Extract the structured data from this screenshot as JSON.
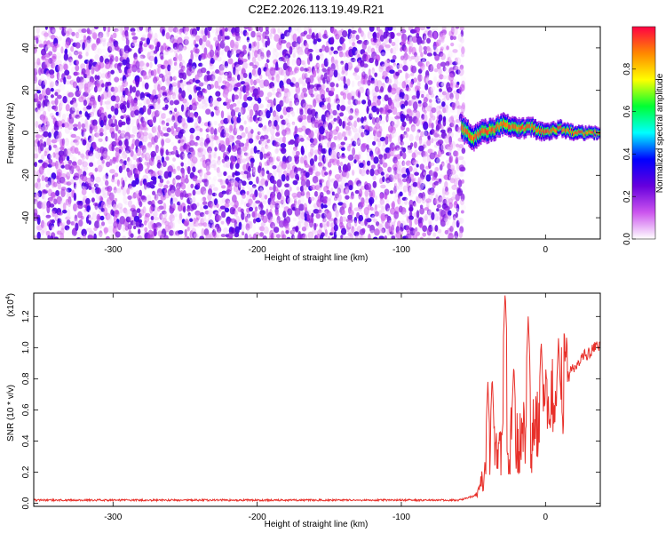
{
  "title": "C2E2.2026.113.19.49.R21",
  "chart_data": [
    {
      "type": "heatmap",
      "xlabel": "Height of straight line (km)",
      "ylabel": "Frequency (Hz)",
      "xlim": [
        -355,
        38
      ],
      "ylim": [
        -50,
        50
      ],
      "x_ticks": [
        -300,
        -200,
        -100,
        0
      ],
      "y_ticks": [
        -40,
        -20,
        0,
        20,
        40
      ],
      "grid": false,
      "colorbar": {
        "label": "Normalized spectral amplitude",
        "range": [
          0.0,
          1.0
        ],
        "ticks": [
          0.0,
          0.2,
          0.4,
          0.6,
          0.8
        ],
        "colors": [
          "#ffffff",
          "#cc55ee",
          "#6600dd",
          "#0000ff",
          "#00ffff",
          "#00ff33",
          "#ffff00",
          "#ff8800",
          "#ff0044"
        ]
      },
      "noise_region": {
        "x_range": [
          -355,
          -58
        ],
        "amplitude_range": [
          0.0,
          0.3
        ]
      },
      "signal_track": {
        "description_points_x": [
          -58,
          -54,
          -50,
          -45,
          -40,
          -35,
          -30,
          -25,
          -20,
          -15,
          -10,
          -5,
          0,
          5,
          10,
          15,
          20,
          25,
          30,
          38
        ],
        "description_points_y": [
          2,
          0,
          -3,
          0,
          1,
          2,
          4,
          3,
          2,
          2,
          3,
          1,
          0,
          1,
          2,
          1,
          0,
          0,
          0,
          0
        ]
      }
    },
    {
      "type": "line",
      "xlabel": "Height of straight line (km)",
      "ylabel": "SNR (10 * v/v)",
      "y_multiplier": "(x10",
      "y_multiplier_exp": "4",
      "y_multiplier_close": ")",
      "xlim": [
        -355,
        38
      ],
      "ylim": [
        -0.02,
        1.35
      ],
      "x_ticks": [
        -300,
        -200,
        -100,
        0
      ],
      "y_ticks": [
        "0.0",
        "0.2",
        "0.4",
        "0.6",
        "0.8",
        "1.0",
        "1.2"
      ],
      "grid": false,
      "series": [
        {
          "color": "#e8302a",
          "envelope": {
            "x": [
              -355,
              -60,
              -48,
              -44,
              -40,
              -35,
              -30,
              -25,
              -20,
              -15,
              -10,
              -5,
              0,
              5,
              10,
              15,
              20,
              25,
              30,
              38
            ],
            "y": [
              0.02,
              0.02,
              0.05,
              0.15,
              0.25,
              0.3,
              0.32,
              0.35,
              0.38,
              0.42,
              0.45,
              0.48,
              0.55,
              0.62,
              0.72,
              0.8,
              0.88,
              0.93,
              0.97,
              1.02
            ]
          },
          "spikes": [
            {
              "x": -40,
              "y": 0.78
            },
            {
              "x": -37,
              "y": 0.82
            },
            {
              "x": -28,
              "y": 1.36
            },
            {
              "x": -22,
              "y": 0.9
            },
            {
              "x": -12,
              "y": 1.2
            },
            {
              "x": -3,
              "y": 1.05
            },
            {
              "x": 0,
              "y": 0.75
            },
            {
              "x": 9,
              "y": 1.06
            },
            {
              "x": 14,
              "y": 1.0
            }
          ]
        }
      ]
    }
  ]
}
